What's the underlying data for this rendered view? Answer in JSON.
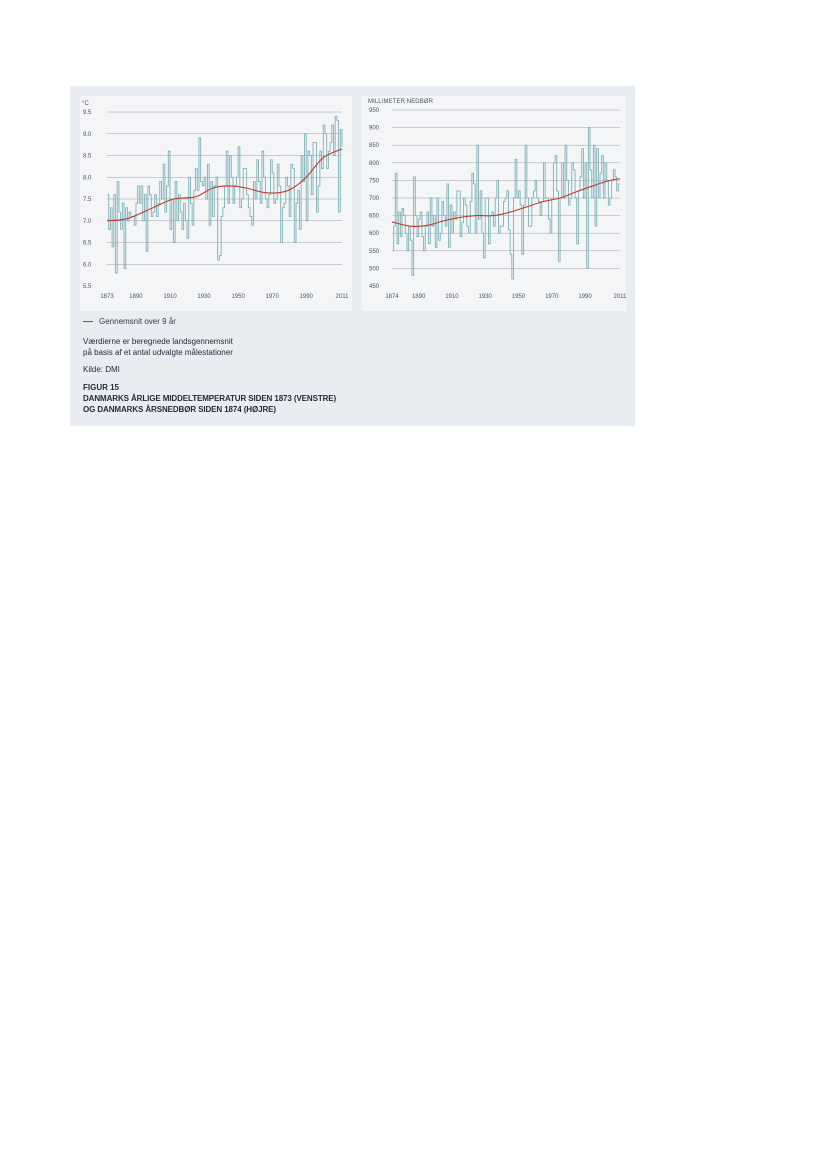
{
  "legend": {
    "label": "Gennemsnit over 9 år",
    "color": "#c0392b"
  },
  "notes": {
    "line1": "Værdierne er beregnede landsgennemsnit",
    "line2": "på basis af et antal udvalgte målestationer",
    "source": "Kilde: DMI"
  },
  "figure": {
    "label": "FIGUR 15",
    "caption_line1": "DANMARKS ÅRLIGE MIDDELTEMPERATUR SIDEN 1873 (VENSTRE)",
    "caption_line2": "OG DANMARKS ÅRSNEDBØR SIDEN 1874 (HØJRE)"
  },
  "colors": {
    "panel_bg": "#e9edf1",
    "plot_bg": "#f3f5f7",
    "series": "#7fb1b7",
    "smooth": "#c0392b",
    "grid": "#9aa3ab"
  },
  "chart_data": [
    {
      "type": "line",
      "ylabel": "°C",
      "ylim": [
        5.5,
        9.5
      ],
      "yticks": [
        5.5,
        6.0,
        6.5,
        7.0,
        7.5,
        8.0,
        8.5,
        9.0,
        9.5
      ],
      "ytick_labels": [
        "5.5",
        "6.0",
        "6.5",
        "7.0",
        "7.5",
        "8.0",
        "8.5",
        "9.0",
        "9.5"
      ],
      "xlim": [
        1873,
        2011
      ],
      "xticks": [
        1873,
        1890,
        1910,
        1930,
        1950,
        1970,
        1990,
        2011
      ],
      "x_start": 1873,
      "series": [
        {
          "values": [
            7.6,
            6.8,
            7.3,
            6.4,
            7.6,
            5.8,
            7.9,
            7.2,
            6.8,
            7.4,
            5.9,
            7.3,
            7.0,
            7.2,
            7.1,
            7.1,
            6.9,
            7.4,
            7.8,
            7.4,
            7.8,
            7.0,
            7.6,
            6.3,
            7.8,
            7.6,
            7.1,
            7.2,
            7.6,
            7.1,
            7.4,
            7.9,
            7.5,
            8.3,
            7.2,
            7.8,
            8.6,
            6.8,
            7.5,
            6.5,
            7.9,
            7.0,
            7.6,
            7.2,
            6.8,
            7.4,
            7.0,
            6.6,
            8.0,
            7.4,
            6.9,
            7.7,
            8.2,
            7.7,
            8.9,
            7.9,
            7.8,
            8.0,
            7.5,
            8.3,
            6.9,
            7.9,
            7.1,
            7.8,
            8.0,
            6.1,
            6.2,
            7.1,
            7.3,
            7.8,
            8.6,
            7.4,
            8.5,
            8.0,
            7.4,
            7.8,
            8.0,
            8.7,
            7.3,
            7.5,
            8.2,
            8.2,
            7.6,
            7.3,
            7.1,
            6.9,
            7.9,
            7.5,
            8.4,
            7.9,
            7.4,
            8.6,
            8.0,
            7.5,
            7.3,
            7.6,
            8.4,
            8.1,
            7.4,
            7.5,
            8.3,
            7.8,
            6.5,
            7.3,
            7.4,
            8.0,
            7.8,
            7.1,
            8.3,
            8.2,
            6.5,
            7.4,
            7.7,
            6.8,
            8.5,
            7.9,
            9.0,
            7.0,
            8.6,
            8.5,
            7.6,
            8.8,
            8.8,
            7.2,
            7.8,
            8.6,
            8.2,
            9.2,
            9.0,
            8.2,
            8.6,
            8.8,
            9.2,
            8.5,
            9.4,
            9.3,
            7.2,
            9.1,
            8.7
          ],
          "color": "#7fb1b7"
        },
        {
          "smooth": [
            [
              1873,
              7.0
            ],
            [
              1885,
              7.05
            ],
            [
              1900,
              7.3
            ],
            [
              1912,
              7.5
            ],
            [
              1925,
              7.55
            ],
            [
              1935,
              7.75
            ],
            [
              1945,
              7.8
            ],
            [
              1955,
              7.75
            ],
            [
              1965,
              7.65
            ],
            [
              1975,
              7.65
            ],
            [
              1982,
              7.75
            ],
            [
              1990,
              8.0
            ],
            [
              2000,
              8.45
            ],
            [
              2011,
              8.65
            ]
          ],
          "color": "#c0392b"
        }
      ]
    },
    {
      "type": "line",
      "ylabel": "MILLIMETER NEDBØR",
      "ylim": [
        450,
        950
      ],
      "yticks": [
        450,
        500,
        550,
        600,
        650,
        700,
        750,
        800,
        850,
        900,
        950
      ],
      "ytick_labels": [
        "450",
        "500",
        "550",
        "600",
        "650",
        "700",
        "750",
        "800",
        "850",
        "900",
        "950"
      ],
      "xlim": [
        1874,
        2011
      ],
      "xticks": [
        1874,
        1890,
        1910,
        1930,
        1950,
        1970,
        1990,
        2011
      ],
      "x_start": 1874,
      "series": [
        {
          "values": [
            550,
            620,
            770,
            570,
            660,
            590,
            670,
            650,
            600,
            550,
            620,
            580,
            480,
            760,
            650,
            590,
            640,
            660,
            590,
            550,
            620,
            660,
            570,
            700,
            620,
            650,
            560,
            700,
            580,
            600,
            690,
            650,
            620,
            740,
            560,
            680,
            600,
            660,
            640,
            720,
            720,
            590,
            630,
            700,
            680,
            620,
            600,
            690,
            770,
            740,
            600,
            850,
            640,
            720,
            600,
            530,
            700,
            700,
            570,
            650,
            660,
            620,
            700,
            750,
            600,
            620,
            620,
            690,
            700,
            720,
            610,
            540,
            470,
            700,
            810,
            700,
            720,
            680,
            540,
            680,
            850,
            700,
            620,
            620,
            700,
            720,
            750,
            700,
            690,
            650,
            690,
            800,
            700,
            700,
            640,
            600,
            700,
            800,
            820,
            720,
            520,
            700,
            800,
            700,
            850,
            750,
            680,
            700,
            800,
            780,
            700,
            570,
            720,
            760,
            840,
            700,
            800,
            500,
            900,
            780,
            700,
            850,
            620,
            840,
            700,
            770,
            820,
            700,
            800,
            750,
            680,
            700,
            750,
            780,
            760,
            720,
            740,
            740
          ],
          "color": "#7fb1b7"
        },
        {
          "smooth": [
            [
              1874,
              632
            ],
            [
              1885,
              620
            ],
            [
              1895,
              622
            ],
            [
              1905,
              635
            ],
            [
              1915,
              645
            ],
            [
              1925,
              650
            ],
            [
              1935,
              650
            ],
            [
              1945,
              660
            ],
            [
              1955,
              675
            ],
            [
              1965,
              690
            ],
            [
              1975,
              700
            ],
            [
              1985,
              718
            ],
            [
              1995,
              735
            ],
            [
              2005,
              750
            ],
            [
              2011,
              755
            ]
          ],
          "color": "#c0392b"
        }
      ]
    }
  ]
}
